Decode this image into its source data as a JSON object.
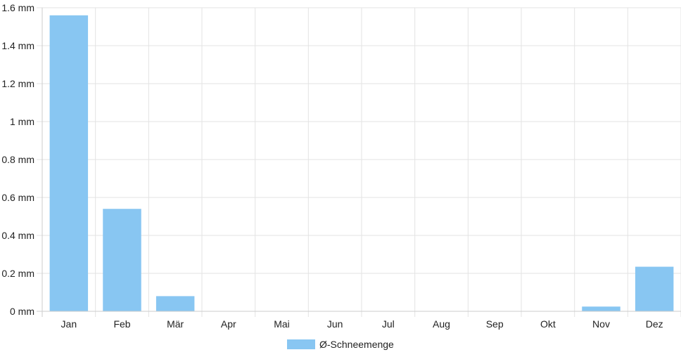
{
  "chart_data": {
    "type": "bar",
    "categories": [
      "Jan",
      "Feb",
      "Mär",
      "Apr",
      "Mai",
      "Jun",
      "Jul",
      "Aug",
      "Sep",
      "Okt",
      "Nov",
      "Dez"
    ],
    "series": [
      {
        "name": "Ø-Schneemenge",
        "values": [
          1.56,
          0.54,
          0.08,
          0,
          0,
          0,
          0,
          0,
          0,
          0,
          0.025,
          0.235
        ]
      }
    ],
    "y_ticks": [
      "0 mm",
      "0.2 mm",
      "0.4 mm",
      "0.6 mm",
      "0.8 mm",
      "1 mm",
      "1.2 mm",
      "1.4 mm",
      "1.6 mm"
    ],
    "ylim": [
      0,
      1.6
    ],
    "grid": true,
    "legend_position": "bottom",
    "colors": {
      "bar": "#88c6f2",
      "grid": "#e3e3e3",
      "axis": "#cccccc"
    }
  }
}
